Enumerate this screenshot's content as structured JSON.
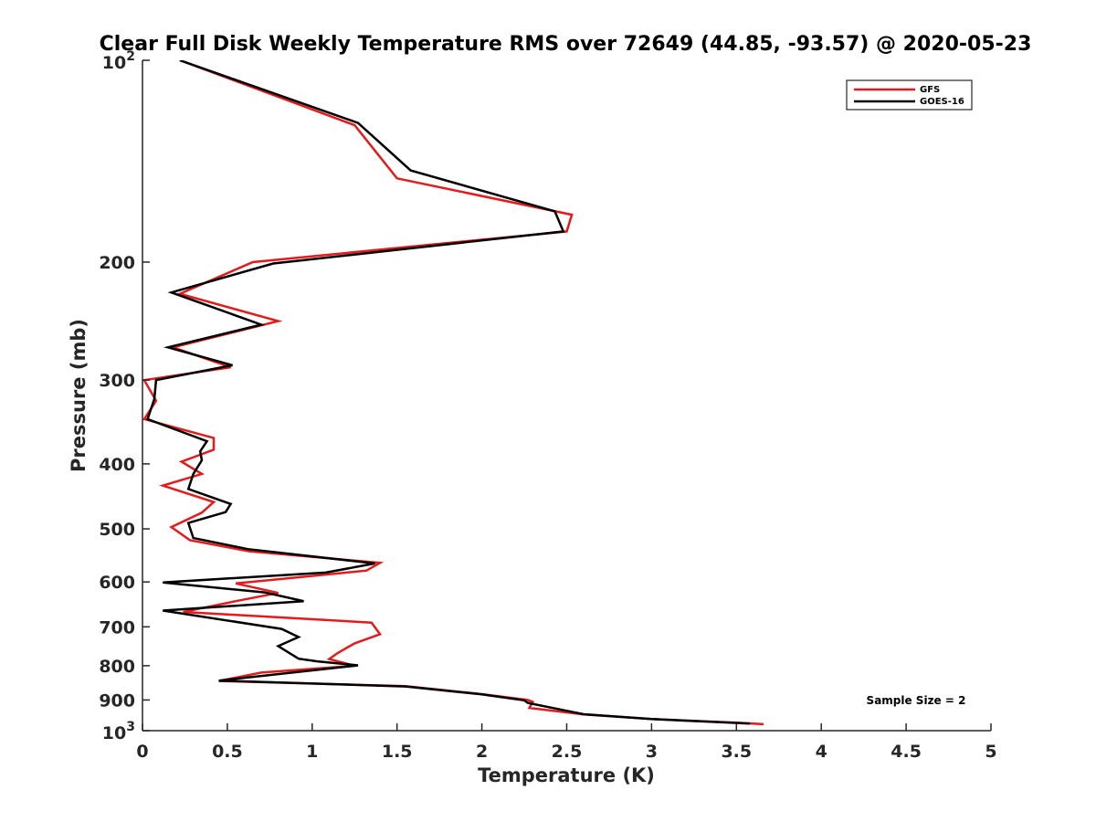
{
  "chart_data": {
    "type": "line",
    "title": "Clear Full Disk Weekly Temperature RMS over 72649 (44.85, -93.57) @ 2020-05-23",
    "xlabel": "Temperature (K)",
    "ylabel": "Pressure (mb)",
    "xlim": [
      0,
      5
    ],
    "ylim": [
      100,
      1000
    ],
    "y_scale": "log",
    "y_reversed": true,
    "x_ticks": [
      "0",
      "0.5",
      "1",
      "1.5",
      "2",
      "2.5",
      "3",
      "3.5",
      "4",
      "4.5",
      "5"
    ],
    "y_ticks": [
      {
        "value": 100,
        "base": "10",
        "exp": "2"
      },
      {
        "value": 200,
        "label": "200"
      },
      {
        "value": 300,
        "label": "300"
      },
      {
        "value": 400,
        "label": "400"
      },
      {
        "value": 500,
        "label": "500"
      },
      {
        "value": 600,
        "label": "600"
      },
      {
        "value": 700,
        "label": "700"
      },
      {
        "value": 800,
        "label": "800"
      },
      {
        "value": 900,
        "label": "900"
      },
      {
        "value": 1000,
        "base": "10",
        "exp": "3"
      }
    ],
    "legend_position": "top-right",
    "annotation": "Sample Size = 2",
    "series": [
      {
        "name": "GFS",
        "color": "#e41a1c",
        "points": [
          [
            0.22,
            100
          ],
          [
            1.25,
            125
          ],
          [
            1.5,
            150
          ],
          [
            2.53,
            170
          ],
          [
            2.5,
            180
          ],
          [
            0.65,
            200
          ],
          [
            0.22,
            223
          ],
          [
            0.8,
            245
          ],
          [
            0.18,
            268
          ],
          [
            0.52,
            287
          ],
          [
            0.01,
            300
          ],
          [
            0.08,
            322
          ],
          [
            0.01,
            343
          ],
          [
            0.42,
            366
          ],
          [
            0.42,
            381
          ],
          [
            0.23,
            397
          ],
          [
            0.35,
            414
          ],
          [
            0.12,
            431
          ],
          [
            0.42,
            456
          ],
          [
            0.35,
            473
          ],
          [
            0.17,
            497
          ],
          [
            0.28,
            520
          ],
          [
            0.63,
            540
          ],
          [
            1.4,
            562
          ],
          [
            1.32,
            577
          ],
          [
            0.55,
            603
          ],
          [
            0.8,
            623
          ],
          [
            0.55,
            641
          ],
          [
            0.24,
            665
          ],
          [
            1.35,
            690
          ],
          [
            1.4,
            718
          ],
          [
            1.25,
            741
          ],
          [
            1.15,
            766
          ],
          [
            1.1,
            782
          ],
          [
            1.25,
            800
          ],
          [
            0.7,
            819
          ],
          [
            0.45,
            843
          ],
          [
            1.55,
            858
          ],
          [
            2.0,
            882
          ],
          [
            2.27,
            900
          ],
          [
            2.3,
            906
          ],
          [
            2.28,
            925
          ],
          [
            2.6,
            946
          ],
          [
            3.0,
            961
          ],
          [
            3.5,
            973
          ],
          [
            3.66,
            978
          ]
        ]
      },
      {
        "name": "GOES-16",
        "color": "#000000",
        "points": [
          [
            0.22,
            100
          ],
          [
            1.27,
            124
          ],
          [
            1.58,
            146
          ],
          [
            2.43,
            168
          ],
          [
            2.48,
            180
          ],
          [
            0.77,
            201
          ],
          [
            0.17,
            222
          ],
          [
            0.7,
            248
          ],
          [
            0.15,
            268
          ],
          [
            0.53,
            285
          ],
          [
            0.08,
            300
          ],
          [
            0.07,
            320
          ],
          [
            0.03,
            343
          ],
          [
            0.38,
            370
          ],
          [
            0.34,
            383
          ],
          [
            0.35,
            395
          ],
          [
            0.3,
            414
          ],
          [
            0.27,
            436
          ],
          [
            0.52,
            459
          ],
          [
            0.49,
            472
          ],
          [
            0.27,
            490
          ],
          [
            0.3,
            516
          ],
          [
            0.62,
            536
          ],
          [
            1.37,
            563
          ],
          [
            1.08,
            581
          ],
          [
            0.12,
            601
          ],
          [
            0.72,
            622
          ],
          [
            0.95,
            641
          ],
          [
            0.12,
            662
          ],
          [
            0.82,
            705
          ],
          [
            0.92,
            725
          ],
          [
            0.8,
            748
          ],
          [
            0.92,
            781
          ],
          [
            1.03,
            788
          ],
          [
            1.27,
            799
          ],
          [
            0.45,
            842
          ],
          [
            1.55,
            859
          ],
          [
            2.0,
            883
          ],
          [
            2.25,
            901
          ],
          [
            2.27,
            909
          ],
          [
            2.6,
            945
          ],
          [
            3.0,
            961
          ],
          [
            3.58,
            976
          ]
        ]
      }
    ]
  }
}
